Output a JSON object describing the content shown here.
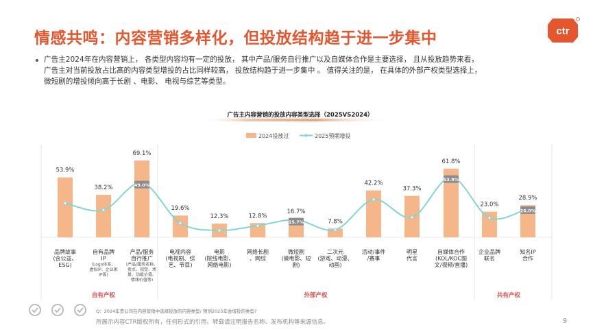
{
  "slide": {
    "title": "情感共鸣：内容营销多样化，但投放结构趋于进一步集中",
    "paragraph": [
      "广告主2024年在内容营销上， 各类型内容均有一定的投放， 其中产品/服务自行推广以及自媒体合作是主要选择， 且从投放趋势来看，",
      "广告主对当前投放占比高的内容类型增投的占比同样较高， 投放结构趋于进一步集中 。 值得关注的是， 在具体的外部产权类型选择上，",
      "微短剧的增投倾向高于长剧 、电影、 电视与综艺等类型。"
    ],
    "note": "Q：2024年贵公司在内容营销中选择投放的内容类型/ 预测2025年会增投的类型?",
    "copyright": "所展示内容CTR版权所有，任何形式的引用、转载请注明报告名称、发布机构等来源信息。",
    "page_number": "9",
    "logo_text": "ctr",
    "colors": {
      "accent": "#e4572e",
      "bar": "#f5b68a",
      "line": "#7fd6d2",
      "group_label": "#d9534f",
      "badge": "#8c8c8c"
    }
  },
  "chart_data": {
    "type": "bar",
    "title": "广告主内容营销的投放内容类型选择（2025VS2024）",
    "legend": [
      "2024投放过",
      "2025预期增投"
    ],
    "legend_position": "top",
    "categories": [
      {
        "main": [
          "品牌故事",
          "(含公益、",
          "ESG)"
        ],
        "sub": []
      },
      {
        "main": [
          "自有品牌",
          "IP"
        ],
        "sub": [
          "(Logo体系、",
          "虚拟IP、企业家",
          "IP等)"
        ]
      },
      {
        "main": [
          "产品/服务",
          "自行推广"
        ],
        "sub": [
          "(产品/服务名称、",
          "卖点、视觉、场",
          "景、功能价值、",
          "情绪价值等)"
        ]
      },
      {
        "main": [
          "电视内容",
          "(电视剧、综",
          "艺、节目)"
        ],
        "sub": []
      },
      {
        "main": [
          "电影",
          "(院线电影、",
          "网络电影)"
        ],
        "sub": []
      },
      {
        "main": [
          "网络长剧",
          "、网综"
        ],
        "sub": []
      },
      {
        "main": [
          "微短剧",
          "(微电影、短",
          "剧)"
        ],
        "sub": []
      },
      {
        "main": [
          "二次元",
          "(游戏、动漫、",
          "动画)"
        ],
        "sub": []
      },
      {
        "main": [
          "活动/事件",
          "/赛事"
        ],
        "sub": []
      },
      {
        "main": [
          "明星",
          "代言"
        ],
        "sub": []
      },
      {
        "main": [
          "自媒体合作",
          "(KOL/KOC图",
          "文/视频/直播)"
        ],
        "sub": []
      },
      {
        "main": [
          "企业品牌",
          "联名"
        ],
        "sub": []
      },
      {
        "main": [
          "知名IP",
          "合作"
        ],
        "sub": []
      }
    ],
    "series": [
      {
        "name": "2024投放过",
        "values": [
          53.9,
          38.2,
          69.1,
          19.6,
          12.3,
          12.8,
          16.7,
          7.8,
          42.2,
          37.3,
          61.8,
          23.0,
          28.9
        ]
      },
      {
        "name": "2025预期增投",
        "values": [
          30.7,
          24.5,
          49.0,
          12.8,
          6.2,
          10.5,
          15.7,
          6.8,
          34.0,
          18.0,
          53.9,
          17.5,
          26.0
        ]
      }
    ],
    "data_labels": [
      "53.9%",
      "38.2%",
      "69.1%",
      "19.6%",
      "12.3%",
      "12.8%",
      "16.7%",
      "7.8%",
      "42.2%",
      "37.3%",
      "61.8%",
      "23.0%",
      "28.9%"
    ],
    "highlight_labels": [
      {
        "index": 2,
        "label": "49.0%"
      },
      {
        "index": 6,
        "label": "15.7%"
      },
      {
        "index": 10,
        "label": "53.9%"
      },
      {
        "index": 12,
        "label": "26.0%"
      }
    ],
    "groups": [
      {
        "label": "自有产权",
        "from": 0,
        "to": 2
      },
      {
        "label": "外部产权",
        "from": 3,
        "to": 10
      },
      {
        "label": "共有产权",
        "from": 11,
        "to": 12
      }
    ],
    "ylim": [
      0,
      80
    ],
    "grid": false
  }
}
